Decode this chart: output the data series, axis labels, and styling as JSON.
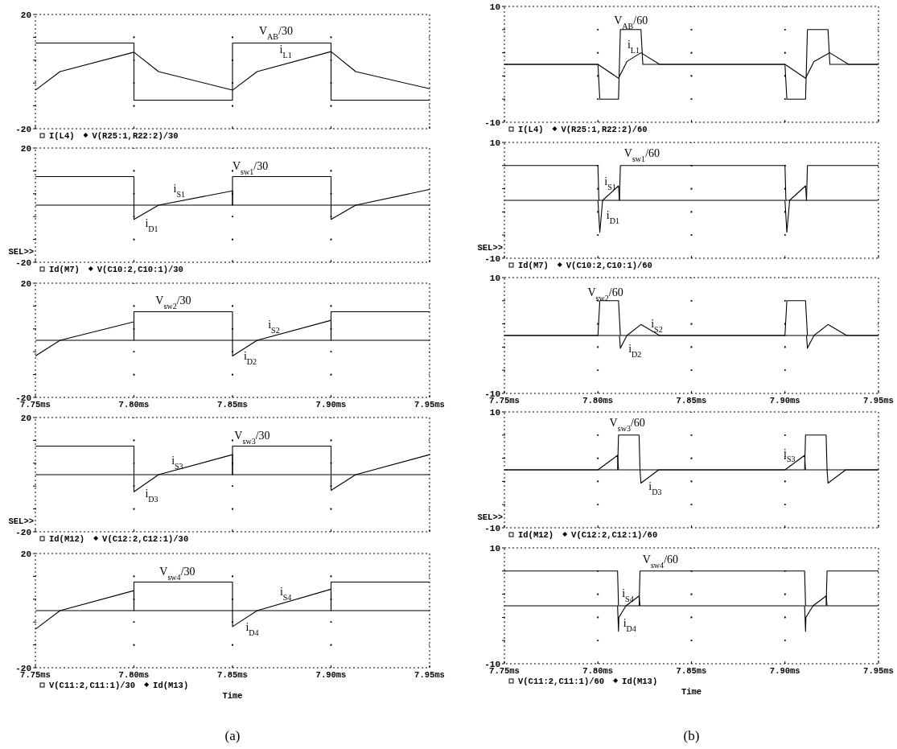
{
  "chart_data": [
    {
      "type": "line",
      "ylim": [
        -20,
        20
      ],
      "yticks": [
        20,
        {
          "value": 12,
          "label": null
        },
        {
          "value": 4,
          "label": null
        },
        {
          "value": -4,
          "label": null
        },
        {
          "value": -12,
          "label": null
        },
        -20
      ],
      "xlim": [
        7.75,
        7.95
      ],
      "xticks": [
        {
          "value": 7.75,
          "label": null
        },
        {
          "value": 7.8,
          "label": null
        },
        {
          "value": 7.85,
          "label": null
        },
        {
          "value": 7.9,
          "label": null
        },
        {
          "value": 7.95,
          "label": null
        }
      ],
      "tick_labels": "y",
      "grid": true,
      "legend": "bottom",
      "series": [
        {
          "name": "I(L4)",
          "color": "#000000",
          "x": [
            7.75,
            7.7625,
            7.8,
            7.8125,
            7.85,
            7.8625,
            7.9,
            7.9125,
            7.95
          ],
          "values": [
            -6.5,
            0,
            6.8,
            0,
            -6.5,
            0,
            7,
            0,
            -6
          ]
        },
        {
          "name": "V(R25:1,R22:2)/30",
          "color": "#000000",
          "x": [
            7.75,
            7.8,
            7.8,
            7.85,
            7.85,
            7.9,
            7.9,
            7.95
          ],
          "values": [
            10,
            10,
            -10,
            -10,
            10,
            10,
            -10,
            -10
          ]
        }
      ],
      "annotations": [
        "V$_{AB}$/30",
        "i$_{L1}$"
      ]
    },
    {
      "type": "line",
      "ylim": [
        -20,
        20
      ],
      "yticks": [
        20,
        {
          "value": 12,
          "label": null
        },
        {
          "value": 4,
          "label": null
        },
        {
          "value": -4,
          "label": null
        },
        {
          "value": -12,
          "label": null
        },
        -20
      ],
      "xlim": [
        7.75,
        7.95
      ],
      "xticks": [
        {
          "value": 7.75,
          "label": null
        },
        {
          "value": 7.8,
          "label": null
        },
        {
          "value": 7.85,
          "label": null
        },
        {
          "value": 7.9,
          "label": null
        },
        {
          "value": 7.95,
          "label": null
        }
      ],
      "tick_labels": "y",
      "grid": true,
      "legend": "bottom",
      "series": [
        {
          "name": "Id(M7)",
          "color": "#000000",
          "x": [
            7.75,
            7.8,
            7.8,
            7.8125,
            7.85,
            7.85,
            7.9,
            7.9,
            7.9125,
            7.95
          ],
          "values": [
            0,
            0,
            -5,
            0,
            5,
            0,
            0,
            -5,
            0,
            5.5
          ]
        },
        {
          "name": "V(C10:2,C10:1)/30",
          "color": "#000000",
          "x": [
            7.75,
            7.8,
            7.8,
            7.85,
            7.85,
            7.9,
            7.9,
            7.95
          ],
          "values": [
            10,
            10,
            0,
            0,
            10,
            10,
            0,
            0
          ]
        }
      ],
      "annotations": [
        "SEL>>",
        "V$_{sw1}$/30",
        "i$_{S1}$",
        "i$_{D1}$"
      ]
    },
    {
      "type": "line",
      "ylim": [
        -20,
        20
      ],
      "yticks": [
        20,
        {
          "value": 12,
          "label": null
        },
        {
          "value": 4,
          "label": null
        },
        {
          "value": -4,
          "label": null
        },
        {
          "value": -12,
          "label": null
        },
        -20
      ],
      "xlim": [
        7.75,
        7.95
      ],
      "xticks": [
        {
          "value": 7.75,
          "label": "7.75ms"
        },
        {
          "value": 7.8,
          "label": "7.80ms"
        },
        {
          "value": 7.85,
          "label": "7.85ms"
        },
        {
          "value": 7.9,
          "label": "7.90ms"
        },
        {
          "value": 7.95,
          "label": "7.95ms"
        }
      ],
      "grid": true,
      "series": [
        {
          "color": "#000000",
          "x": [
            7.75,
            7.8,
            7.8,
            7.85,
            7.85,
            7.9,
            7.9,
            7.95
          ],
          "values": [
            0,
            0,
            10,
            10,
            0,
            0,
            10,
            10
          ]
        },
        {
          "color": "#000000",
          "x": [
            7.75,
            7.7625,
            7.8,
            7.8,
            7.85,
            7.85,
            7.8625,
            7.9,
            7.9,
            7.95
          ],
          "values": [
            -5.5,
            0,
            6.5,
            0,
            0,
            -5.5,
            0,
            7,
            0,
            0
          ]
        }
      ],
      "annotations": [
        "V$_{sw2}$/30",
        "i$_{S2}$",
        "i$_{D2}$"
      ]
    },
    {
      "type": "line",
      "ylim": [
        -20,
        20
      ],
      "yticks": [
        20,
        {
          "value": 12,
          "label": null
        },
        {
          "value": 4,
          "label": null
        },
        {
          "value": -4,
          "label": null
        },
        {
          "value": -12,
          "label": null
        },
        -20
      ],
      "xlim": [
        7.75,
        7.95
      ],
      "xticks": [
        {
          "value": 7.75,
          "label": null
        },
        {
          "value": 7.8,
          "label": null
        },
        {
          "value": 7.85,
          "label": null
        },
        {
          "value": 7.9,
          "label": null
        },
        {
          "value": 7.95,
          "label": null
        }
      ],
      "tick_labels": "y",
      "grid": true,
      "legend": "bottom",
      "series": [
        {
          "name": "Id(M12)",
          "color": "#000000",
          "x": [
            7.75,
            7.8,
            7.8,
            7.8125,
            7.85,
            7.85,
            7.9,
            7.9,
            7.9125,
            7.95
          ],
          "values": [
            0,
            0,
            -6,
            0,
            7,
            0,
            0,
            -5.5,
            0,
            7
          ]
        },
        {
          "name": "V(C12:2,C12:1)/30",
          "color": "#000000",
          "x": [
            7.75,
            7.8,
            7.8,
            7.85,
            7.85,
            7.9,
            7.9,
            7.95
          ],
          "values": [
            10,
            10,
            0,
            0,
            10,
            10,
            0,
            0
          ]
        }
      ],
      "annotations": [
        "SEL>>",
        "V$_{sw3}$/30",
        "i$_{S3}$",
        "i$_{D3}$"
      ]
    },
    {
      "type": "line",
      "title": "(a)",
      "xlabel": "Time",
      "ylim": [
        -20,
        20
      ],
      "yticks": [
        20,
        {
          "value": 12,
          "label": null
        },
        {
          "value": 4,
          "label": null
        },
        {
          "value": -4,
          "label": null
        },
        {
          "value": -12,
          "label": null
        },
        -20
      ],
      "xlim": [
        7.75,
        7.95
      ],
      "xticks": [
        {
          "value": 7.75,
          "label": "7.75ms"
        },
        {
          "value": 7.8,
          "label": "7.80ms"
        },
        {
          "value": 7.85,
          "label": "7.85ms"
        },
        {
          "value": 7.9,
          "label": "7.90ms"
        },
        {
          "value": 7.95,
          "label": "7.95ms"
        }
      ],
      "grid": true,
      "legend": "bottom",
      "series": [
        {
          "name": "V(C11:2,C11:1)/30",
          "color": "#000000",
          "x": [
            7.75,
            7.8,
            7.8,
            7.85,
            7.85,
            7.9,
            7.9,
            7.95
          ],
          "values": [
            0,
            0,
            10,
            10,
            0,
            0,
            10,
            10
          ]
        },
        {
          "name": "Id(M13)",
          "color": "#000000",
          "x": [
            7.75,
            7.7625,
            7.8,
            7.8,
            7.85,
            7.85,
            7.8625,
            7.9,
            7.9,
            7.95
          ],
          "values": [
            -6.5,
            0,
            7,
            0,
            0,
            -5.6,
            0,
            7.5,
            0,
            0
          ]
        }
      ],
      "annotations": [
        "V$_{sw4}$/30",
        "i$_{S4}$",
        "i$_{D4}$"
      ]
    },
    {
      "type": "line",
      "ylim": [
        -10,
        10
      ],
      "yticks": [
        10,
        {
          "value": 6,
          "label": null
        },
        {
          "value": 2,
          "label": null
        },
        {
          "value": -2,
          "label": null
        },
        {
          "value": -6,
          "label": null
        },
        -10
      ],
      "xlim": [
        7.75,
        7.95
      ],
      "xticks": [
        {
          "value": 7.75,
          "label": null
        },
        {
          "value": 7.8,
          "label": null
        },
        {
          "value": 7.85,
          "label": null
        },
        {
          "value": 7.9,
          "label": null
        },
        {
          "value": 7.95,
          "label": null
        }
      ],
      "tick_labels": "y",
      "grid": true,
      "legend": "bottom",
      "series": [
        {
          "name": "I(L4)",
          "color": "#000000",
          "x": [
            7.75,
            7.8,
            7.811,
            7.8155,
            7.823,
            7.833,
            7.9,
            7.911,
            7.9155,
            7.924,
            7.934,
            7.95
          ],
          "values": [
            0,
            0,
            -2.4,
            0.5,
            2,
            0,
            0,
            -2.4,
            0.5,
            2,
            0,
            0
          ]
        },
        {
          "name": "V(R25:1,R22:2)/60",
          "color": "#000000",
          "x": [
            7.75,
            7.8,
            7.801,
            7.811,
            7.812,
            7.823,
            7.824,
            7.9,
            7.901,
            7.911,
            7.912,
            7.923,
            7.924,
            7.95
          ],
          "values": [
            0,
            0,
            -6,
            -6,
            6,
            6,
            0,
            0,
            -6,
            -6,
            6,
            6,
            0,
            0
          ]
        }
      ],
      "annotations": [
        "V$_{AB}$/60",
        "i$_{L1}$"
      ]
    },
    {
      "type": "line",
      "ylim": [
        -10,
        10
      ],
      "yticks": [
        10,
        {
          "value": 6,
          "label": null
        },
        {
          "value": 2,
          "label": null
        },
        {
          "value": -2,
          "label": null
        },
        {
          "value": -6,
          "label": null
        },
        -10
      ],
      "xlim": [
        7.75,
        7.95
      ],
      "xticks": [
        {
          "value": 7.75,
          "label": null
        },
        {
          "value": 7.8,
          "label": null
        },
        {
          "value": 7.85,
          "label": null
        },
        {
          "value": 7.9,
          "label": null
        },
        {
          "value": 7.95,
          "label": null
        }
      ],
      "tick_labels": "y",
      "grid": true,
      "legend": "bottom",
      "series": [
        {
          "name": "Id(M7)",
          "color": "#000000",
          "x": [
            7.75,
            7.8,
            7.801,
            7.8025,
            7.811,
            7.8115,
            7.9,
            7.901,
            7.9025,
            7.911,
            7.9115,
            7.95
          ],
          "values": [
            0,
            0,
            -5.5,
            0,
            2.5,
            0,
            0,
            -5.5,
            0,
            2.5,
            0,
            0
          ]
        },
        {
          "name": "V(C10:2,C10:1)/60",
          "color": "#000000",
          "x": [
            7.75,
            7.8,
            7.8005,
            7.8115,
            7.812,
            7.9,
            7.9005,
            7.9115,
            7.912,
            7.95
          ],
          "values": [
            6,
            6,
            0,
            0,
            6,
            6,
            0,
            0,
            6,
            6
          ]
        }
      ],
      "annotations": [
        "SEL>>",
        "V$_{sw1}$/60",
        "i$_{S1}$",
        "i$_{D1}$"
      ]
    },
    {
      "type": "line",
      "ylim": [
        -10,
        10
      ],
      "yticks": [
        10,
        {
          "value": 6,
          "label": null
        },
        {
          "value": 2,
          "label": null
        },
        {
          "value": -2,
          "label": null
        },
        {
          "value": -6,
          "label": null
        },
        -10
      ],
      "xlim": [
        7.75,
        7.95
      ],
      "xticks": [
        {
          "value": 7.75,
          "label": "7.75ms"
        },
        {
          "value": 7.8,
          "label": "7.80ms"
        },
        {
          "value": 7.85,
          "label": "7.85ms"
        },
        {
          "value": 7.9,
          "label": "7.90ms"
        },
        {
          "value": 7.95,
          "label": "7.95ms"
        }
      ],
      "grid": true,
      "series": [
        {
          "color": "#000000",
          "x": [
            7.75,
            7.8,
            7.801,
            7.811,
            7.812,
            7.9,
            7.901,
            7.911,
            7.912,
            7.95
          ],
          "values": [
            0,
            0,
            6,
            6,
            0,
            0,
            6,
            6,
            0,
            0
          ]
        },
        {
          "color": "#000000",
          "x": [
            7.75,
            7.8115,
            7.812,
            7.8155,
            7.823,
            7.833,
            7.9115,
            7.912,
            7.9155,
            7.923,
            7.933,
            7.95
          ],
          "values": [
            0,
            0,
            -2.2,
            0,
            1.9,
            0,
            0,
            -2.2,
            0,
            1.9,
            0,
            0
          ]
        }
      ],
      "annotations": [
        "V$_{sw2}$/60",
        "i$_{S2}$",
        "i$_{D2}$"
      ]
    },
    {
      "type": "line",
      "ylim": [
        -10,
        10
      ],
      "yticks": [
        10,
        {
          "value": 6,
          "label": null
        },
        {
          "value": 2,
          "label": null
        },
        {
          "value": -2,
          "label": null
        },
        {
          "value": -6,
          "label": null
        },
        -10
      ],
      "xlim": [
        7.75,
        7.95
      ],
      "xticks": [
        {
          "value": 7.75,
          "label": null
        },
        {
          "value": 7.8,
          "label": null
        },
        {
          "value": 7.85,
          "label": null
        },
        {
          "value": 7.9,
          "label": null
        },
        {
          "value": 7.95,
          "label": null
        }
      ],
      "tick_labels": "y",
      "grid": true,
      "legend": "bottom",
      "series": [
        {
          "name": "Id(M12)",
          "color": "#000000",
          "x": [
            7.75,
            7.8,
            7.8105,
            7.811,
            7.8225,
            7.823,
            7.8325,
            7.9,
            7.9105,
            7.911,
            7.9225,
            7.923,
            7.9325,
            7.95
          ],
          "values": [
            0,
            0,
            2.5,
            0,
            0,
            -2.3,
            0,
            0,
            2.5,
            0,
            0,
            -2.3,
            0,
            0
          ]
        },
        {
          "name": "V(C12:2,C12:1)/60",
          "color": "#000000",
          "x": [
            7.75,
            7.8105,
            7.811,
            7.822,
            7.8225,
            7.9105,
            7.911,
            7.922,
            7.9225,
            7.95
          ],
          "values": [
            0,
            0,
            6,
            6,
            0,
            0,
            6,
            6,
            0,
            0
          ]
        }
      ],
      "annotations": [
        "SEL>>",
        "V$_{sw3}$/60",
        "i$_{S3}$",
        "i$_{D3}$"
      ]
    },
    {
      "type": "line",
      "title": "(b)",
      "xlabel": "Time",
      "ylim": [
        -10,
        10
      ],
      "yticks": [
        10,
        {
          "value": 6,
          "label": null
        },
        {
          "value": 2,
          "label": null
        },
        {
          "value": -2,
          "label": null
        },
        {
          "value": -6,
          "label": null
        },
        -10
      ],
      "xlim": [
        7.75,
        7.95
      ],
      "xticks": [
        {
          "value": 7.75,
          "label": "7.75ms"
        },
        {
          "value": 7.8,
          "label": "7.80ms"
        },
        {
          "value": 7.85,
          "label": "7.85ms"
        },
        {
          "value": 7.9,
          "label": "7.90ms"
        },
        {
          "value": 7.95,
          "label": "7.95ms"
        }
      ],
      "grid": true,
      "legend": "bottom",
      "series": [
        {
          "name": "V(C11:2,C11:1)/60",
          "color": "#000000",
          "x": [
            7.75,
            7.8105,
            7.811,
            7.822,
            7.8225,
            7.9105,
            7.911,
            7.922,
            7.9225,
            7.95
          ],
          "values": [
            6,
            6,
            0,
            0,
            6,
            6,
            0,
            0,
            6,
            6
          ]
        },
        {
          "name": "Id(M13)",
          "color": "#000000",
          "x": [
            7.75,
            7.8105,
            7.811,
            7.8112,
            7.815,
            7.822,
            7.8225,
            7.9105,
            7.911,
            7.9112,
            7.915,
            7.922,
            7.9225,
            7.95
          ],
          "values": [
            0,
            0,
            -4.4,
            -2,
            0,
            1.7,
            0,
            0,
            -4.4,
            -2,
            0,
            1.7,
            0,
            0
          ]
        }
      ],
      "annotations": [
        "V$_{sw4}$/60",
        "i$_{S4}$",
        "i$_{D4}$"
      ]
    }
  ]
}
